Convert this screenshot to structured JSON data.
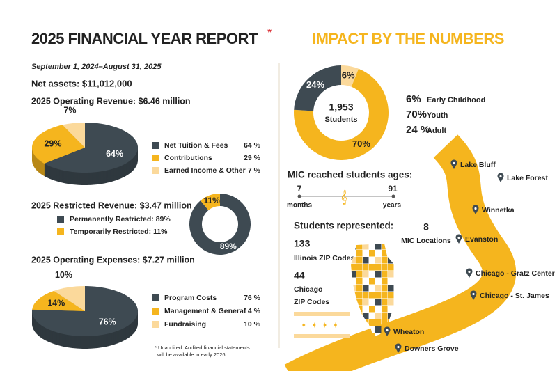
{
  "header": {
    "title": "2025 FINANCIAL YEAR REPORT",
    "asterisk": "*",
    "period": "September 1, 2024–August 31, 2025",
    "net_assets": "Net assets: $11,012,000"
  },
  "chart_data": [
    {
      "type": "pie3d",
      "title": "2025 Operating Revenue:  $6.46 million",
      "categories": [
        "Net Tuition & Fees",
        "Contributions",
        "Earned Income & Other"
      ],
      "values": [
        64,
        29,
        7
      ],
      "value_labels": [
        "64%",
        "29%",
        "7%"
      ],
      "legend_value_labels": [
        "64 %",
        "29 %",
        "7 %"
      ],
      "colors": [
        "#3e4a52",
        "#f5b51e",
        "#fbd99b"
      ]
    },
    {
      "type": "donut",
      "title": "2025 Restricted Revenue: $3.47 million",
      "categories": [
        "Permanently Restricted: 89%",
        "Temporarily Restricted: 11%"
      ],
      "values": [
        89,
        11
      ],
      "value_labels": [
        "89%",
        "11%"
      ],
      "colors": [
        "#3e4a52",
        "#f5b51e"
      ]
    },
    {
      "type": "pie3d",
      "title": "2025 Operating Expenses:  $7.27 million",
      "categories": [
        "Program Costs",
        "Management & General",
        "Fundraising"
      ],
      "values": [
        76,
        14,
        10
      ],
      "value_labels": [
        "76%",
        "14%",
        "10%"
      ],
      "legend_value_labels": [
        "76 %",
        "14 %",
        "10 %"
      ],
      "colors": [
        "#3e4a52",
        "#f5b51e",
        "#fbd99b"
      ]
    },
    {
      "type": "donut",
      "title": "1,953",
      "subtitle": "Students",
      "categories": [
        "Early Childhood",
        "Youth",
        "Adult"
      ],
      "values": [
        6,
        70,
        24
      ],
      "value_labels": [
        "6%",
        "70%",
        "24%"
      ],
      "legend_value_labels": [
        "6%",
        "70%",
        "24 %"
      ],
      "colors": [
        "#fbd99b",
        "#f5b51e",
        "#3e4a52"
      ]
    }
  ],
  "footnote": [
    "* Unaudited. Audited financial statements",
    "will be available in early 2026."
  ],
  "impact": {
    "title": "IMPACT BY THE NUMBERS",
    "ages": {
      "title": "MIC reached students ages:",
      "min": "7",
      "min_unit": "months",
      "max": "91",
      "max_unit": "years"
    },
    "represented": {
      "title": "Students represented:",
      "illinois_count": "133",
      "illinois_label": "Illinois ZIP Codes",
      "chicago_count": "44",
      "chicago_label": [
        "Chicago",
        "ZIP Codes"
      ]
    },
    "locations": {
      "count": "8",
      "label": "MIC Locations",
      "places": [
        "Lake Bluff",
        "Lake Forest",
        "Winnetka",
        "Evanston",
        "Chicago - Gratz Center",
        "Chicago - St. James",
        "Wheaton",
        "Downers Grove"
      ]
    }
  }
}
